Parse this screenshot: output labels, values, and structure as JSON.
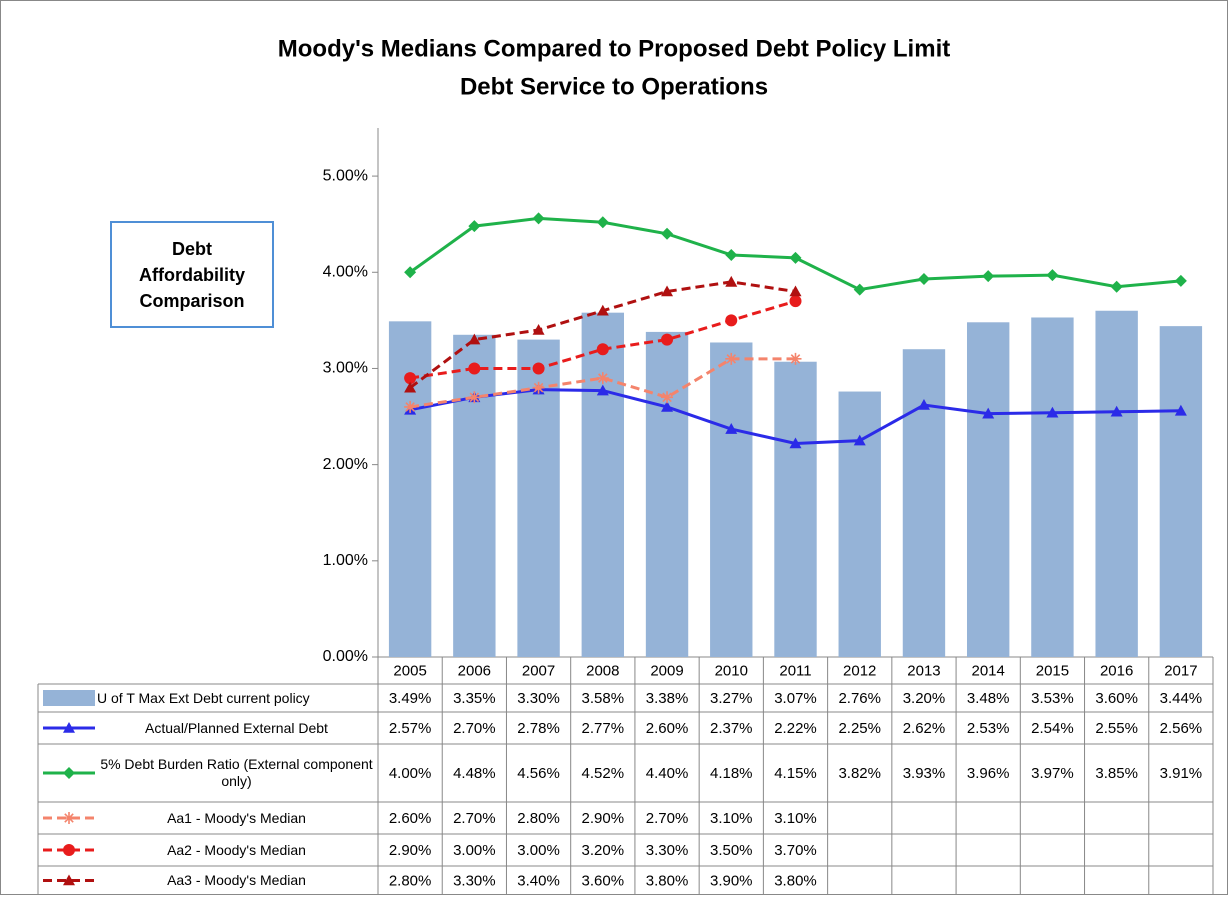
{
  "chart_data": {
    "type": "combo",
    "title": "Moody's Medians Compared to Proposed Debt Policy Limit",
    "subtitle": "Debt Service to Operations",
    "annotation": "Debt Affordability Comparison",
    "categories": [
      "2005",
      "2006",
      "2007",
      "2008",
      "2009",
      "2010",
      "2011",
      "2012",
      "2013",
      "2014",
      "2015",
      "2016",
      "2017"
    ],
    "ylim": [
      0,
      5.5
    ],
    "yticks": [
      {
        "value": 0,
        "label": "0.00%"
      },
      {
        "value": 1,
        "label": "1.00%"
      },
      {
        "value": 2,
        "label": "2.00%"
      },
      {
        "value": 3,
        "label": "3.00%"
      },
      {
        "value": 4,
        "label": "4.00%"
      },
      {
        "value": 5,
        "label": "5.00%"
      }
    ],
    "grid": false,
    "series": [
      {
        "name": "U of T Max Ext Debt current policy",
        "type": "bar",
        "color": "#95b3d7",
        "values": [
          3.49,
          3.35,
          3.3,
          3.58,
          3.38,
          3.27,
          3.07,
          2.76,
          3.2,
          3.48,
          3.53,
          3.6,
          3.44
        ],
        "value_labels": [
          "3.49%",
          "3.35%",
          "3.30%",
          "3.58%",
          "3.38%",
          "3.27%",
          "3.07%",
          "2.76%",
          "3.20%",
          "3.48%",
          "3.53%",
          "3.60%",
          "3.44%"
        ]
      },
      {
        "name": "Actual/Planned External Debt",
        "type": "line",
        "color": "#2b2be8",
        "marker": "triangle",
        "dashed": false,
        "values": [
          2.57,
          2.7,
          2.78,
          2.77,
          2.6,
          2.37,
          2.22,
          2.25,
          2.62,
          2.53,
          2.54,
          2.55,
          2.56
        ],
        "value_labels": [
          "2.57%",
          "2.70%",
          "2.78%",
          "2.77%",
          "2.60%",
          "2.37%",
          "2.22%",
          "2.25%",
          "2.62%",
          "2.53%",
          "2.54%",
          "2.55%",
          "2.56%"
        ]
      },
      {
        "name": "5% Debt Burden Ratio (External component only)",
        "type": "line",
        "color": "#1fb24a",
        "marker": "diamond",
        "dashed": false,
        "values": [
          4.0,
          4.48,
          4.56,
          4.52,
          4.4,
          4.18,
          4.15,
          3.82,
          3.93,
          3.96,
          3.97,
          3.85,
          3.91
        ],
        "value_labels": [
          "4.00%",
          "4.48%",
          "4.56%",
          "4.52%",
          "4.40%",
          "4.18%",
          "4.15%",
          "3.82%",
          "3.93%",
          "3.96%",
          "3.97%",
          "3.85%",
          "3.91%"
        ]
      },
      {
        "name": "Aa1 - Moody's Median",
        "type": "line",
        "color": "#f4846c",
        "marker": "star",
        "dashed": true,
        "values": [
          2.6,
          2.7,
          2.8,
          2.9,
          2.7,
          3.1,
          3.1,
          null,
          null,
          null,
          null,
          null,
          null
        ],
        "value_labels": [
          "2.60%",
          "2.70%",
          "2.80%",
          "2.90%",
          "2.70%",
          "3.10%",
          "3.10%",
          null,
          null,
          null,
          null,
          null,
          null
        ]
      },
      {
        "name": "Aa2 - Moody's Median",
        "type": "line",
        "color": "#e81c1c",
        "marker": "circle",
        "dashed": true,
        "values": [
          2.9,
          3.0,
          3.0,
          3.2,
          3.3,
          3.5,
          3.7,
          null,
          null,
          null,
          null,
          null,
          null
        ],
        "value_labels": [
          "2.90%",
          "3.00%",
          "3.00%",
          "3.20%",
          "3.30%",
          "3.50%",
          "3.70%",
          null,
          null,
          null,
          null,
          null,
          null
        ]
      },
      {
        "name": "Aa3 - Moody's Median",
        "type": "line",
        "color": "#b01010",
        "marker": "triangle",
        "dashed": true,
        "values": [
          2.8,
          3.3,
          3.4,
          3.6,
          3.8,
          3.9,
          3.8,
          null,
          null,
          null,
          null,
          null,
          null
        ],
        "value_labels": [
          "2.80%",
          "3.30%",
          "3.40%",
          "3.60%",
          "3.80%",
          "3.90%",
          "3.80%",
          null,
          null,
          null,
          null,
          null,
          null
        ]
      }
    ]
  }
}
